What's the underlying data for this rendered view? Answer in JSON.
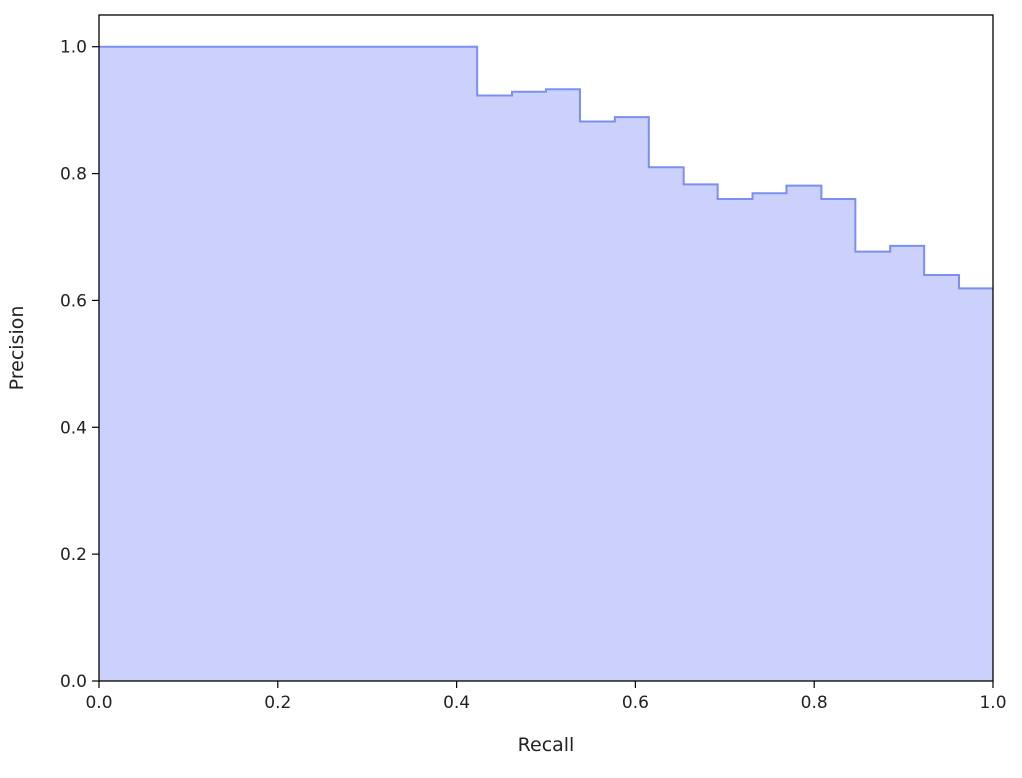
{
  "chart_data": {
    "type": "area",
    "step": "post",
    "xlabel": "Recall",
    "ylabel": "Precision",
    "xlim": [
      0.0,
      1.0
    ],
    "ylim": [
      0.0,
      1.05
    ],
    "xticks": [
      0.0,
      0.2,
      0.4,
      0.6,
      0.8,
      1.0
    ],
    "xtick_labels": [
      "0.0",
      "0.2",
      "0.4",
      "0.6",
      "0.8",
      "1.0"
    ],
    "yticks": [
      0.0,
      0.2,
      0.4,
      0.6,
      0.8,
      1.0
    ],
    "ytick_labels": [
      "0.0",
      "0.2",
      "0.4",
      "0.6",
      "0.8",
      "1.0"
    ],
    "grid": false,
    "colors": {
      "fill": "#ccd1fb",
      "line": "#7b8ff0",
      "axes": "#000000"
    },
    "series": [
      {
        "recall": [
          0.0,
          0.423,
          0.462,
          0.5,
          0.538,
          0.577,
          0.615,
          0.654,
          0.692,
          0.731,
          0.769,
          0.808,
          0.846,
          0.885,
          0.923,
          0.962,
          1.0
        ],
        "precision": [
          1.0,
          0.923,
          0.929,
          0.933,
          0.882,
          0.889,
          0.81,
          0.783,
          0.76,
          0.769,
          0.781,
          0.76,
          0.677,
          0.686,
          0.64,
          0.619,
          0.619
        ]
      }
    ]
  }
}
